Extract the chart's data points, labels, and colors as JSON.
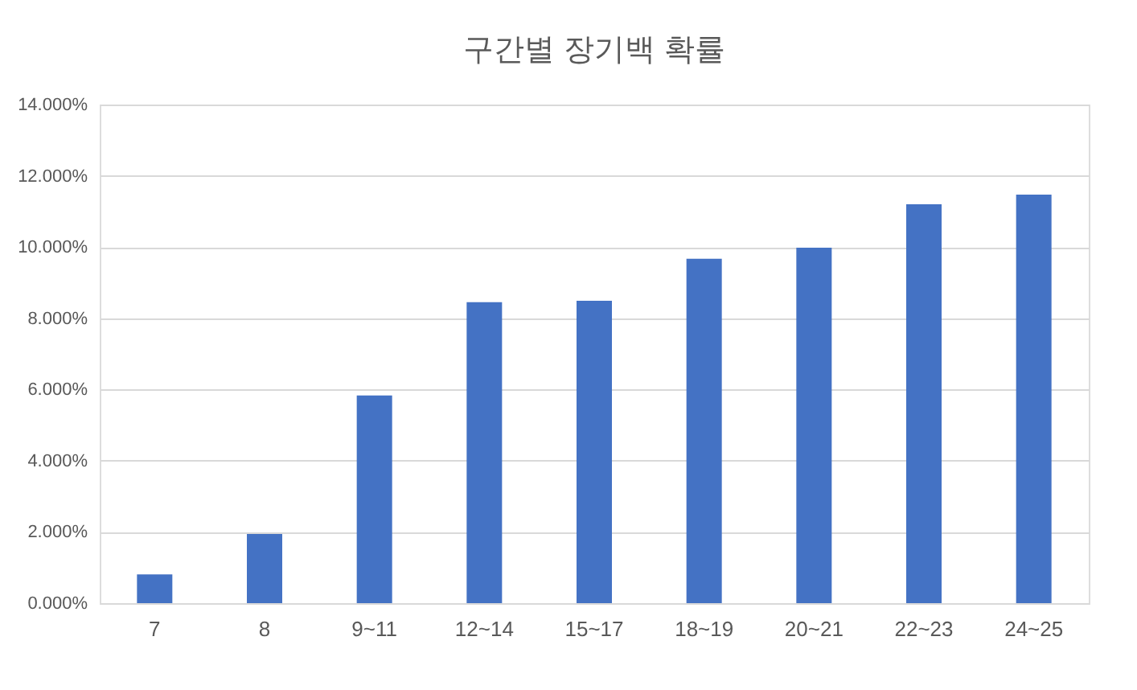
{
  "chart_data": {
    "type": "bar",
    "title": "구간별 장기백 확률",
    "categories": [
      "7",
      "8",
      "9~11",
      "12~14",
      "15~17",
      "18~19",
      "20~21",
      "22~23",
      "24~25"
    ],
    "series": [
      {
        "color": "#4472c4",
        "values": [
          0.81,
          1.94,
          5.83,
          8.45,
          8.49,
          9.67,
          9.98,
          11.2,
          11.47
        ]
      }
    ],
    "ylim": [
      0,
      14
    ],
    "yticks": [
      {
        "value": 0,
        "label": "0.000%"
      },
      {
        "value": 2,
        "label": "2.000%"
      },
      {
        "value": 4,
        "label": "4.000%"
      },
      {
        "value": 6,
        "label": "6.000%"
      },
      {
        "value": 8,
        "label": "8.000%"
      },
      {
        "value": 10,
        "label": "10.000%"
      },
      {
        "value": 12,
        "label": "12.000%"
      },
      {
        "value": 14,
        "label": "14.000%"
      }
    ],
    "grid": "y",
    "legend": false
  }
}
